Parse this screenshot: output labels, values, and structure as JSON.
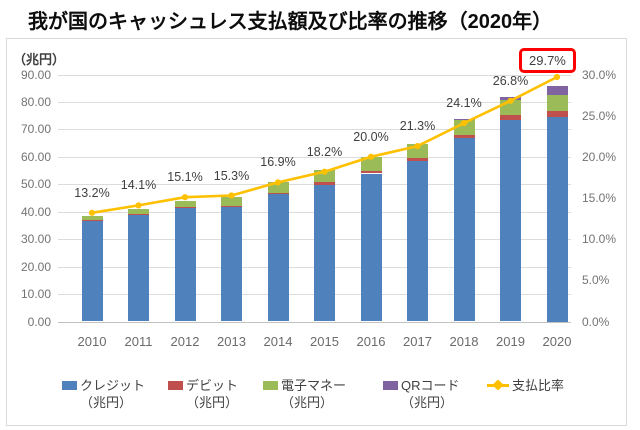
{
  "title": "我が国のキャッシュレス支払額及び比率の推移（2020年）",
  "chart_data": {
    "type": "bar",
    "subtype": "stacked-bar-with-line",
    "title": "我が国のキャッシュレス支払額及び比率の推移（2020年）",
    "unit_label": "（兆円）",
    "categories": [
      "2010",
      "2011",
      "2012",
      "2013",
      "2014",
      "2015",
      "2016",
      "2017",
      "2018",
      "2019",
      "2020"
    ],
    "series": [
      {
        "name": "クレジット（兆円）",
        "color": "#4f81bd",
        "values": [
          36.7,
          38.9,
          41.5,
          41.8,
          46.3,
          49.8,
          53.9,
          58.4,
          66.7,
          73.4,
          74.5
        ]
      },
      {
        "name": "デビット（兆円）",
        "color": "#c0504d",
        "values": [
          0.3,
          0.4,
          0.4,
          0.4,
          0.5,
          0.9,
          1.0,
          1.1,
          1.4,
          1.7,
          2.2
        ]
      },
      {
        "name": "電子マネー（兆円）",
        "color": "#9bbb59",
        "values": [
          1.6,
          1.7,
          2.0,
          3.1,
          4.0,
          4.6,
          5.1,
          5.2,
          5.5,
          5.7,
          6.0
        ]
      },
      {
        "name": "QRコード（兆円）",
        "color": "#8064a2",
        "values": [
          0,
          0,
          0,
          0,
          0,
          0,
          0,
          0,
          0.2,
          1.0,
          3.2
        ]
      }
    ],
    "line_series": {
      "name": "支払比率",
      "color": "#ffc000",
      "values_percent": [
        13.2,
        14.1,
        15.1,
        15.3,
        16.9,
        18.2,
        20.0,
        21.3,
        24.1,
        26.8,
        29.7
      ],
      "point_labels": [
        "13.2%",
        "14.1%",
        "15.1%",
        "15.3%",
        "16.9%",
        "18.2%",
        "20.0%",
        "21.3%",
        "24.1%",
        "26.8%",
        "29.7%"
      ],
      "highlighted_point": "29.7%"
    },
    "left_axis": {
      "range": [
        0,
        90
      ],
      "step": 10,
      "ticks": [
        "90.00",
        "80.00",
        "70.00",
        "60.00",
        "50.00",
        "40.00",
        "30.00",
        "20.00",
        "10.00",
        "0.00"
      ]
    },
    "right_axis": {
      "range": [
        0,
        30
      ],
      "step": 5,
      "ticks": [
        "30.0%",
        "25.0%",
        "20.0%",
        "15.0%",
        "10.0%",
        "5.0%",
        "0.0%"
      ]
    },
    "grid": "horizontal",
    "legend_position": "bottom",
    "legend": [
      {
        "label_line1": "クレジット",
        "label_line2": "（兆円）",
        "color": "#4f81bd",
        "marker": "square"
      },
      {
        "label_line1": "デビット",
        "label_line2": "（兆円）",
        "color": "#c0504d",
        "marker": "square"
      },
      {
        "label_line1": "電子マネー",
        "label_line2": "（兆円）",
        "color": "#9bbb59",
        "marker": "square"
      },
      {
        "label_line1": "QRコード",
        "label_line2": "（兆円）",
        "color": "#8064a2",
        "marker": "square"
      },
      {
        "label_line1": "支払比率",
        "label_line2": "",
        "color": "#ffc000",
        "marker": "line-diamond"
      }
    ],
    "colors": {
      "highlight_box": "#ff0000",
      "gridline": "#dcdcdc",
      "axis_text": "#737373",
      "data_label_text": "#404040"
    }
  }
}
